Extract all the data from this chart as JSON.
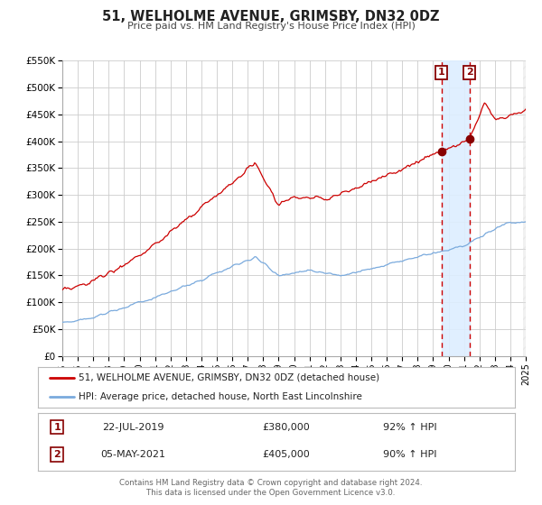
{
  "title": "51, WELHOLME AVENUE, GRIMSBY, DN32 0DZ",
  "subtitle": "Price paid vs. HM Land Registry's House Price Index (HPI)",
  "x_start": 1995,
  "x_end": 2025,
  "x_end_hatch": 2025.5,
  "y_min": 0,
  "y_max": 550000,
  "y_ticks": [
    0,
    50000,
    100000,
    150000,
    200000,
    250000,
    300000,
    350000,
    400000,
    450000,
    500000,
    550000
  ],
  "y_tick_labels": [
    "£0",
    "£50K",
    "£100K",
    "£150K",
    "£200K",
    "£250K",
    "£300K",
    "£350K",
    "£400K",
    "£450K",
    "£500K",
    "£550K"
  ],
  "x_ticks": [
    1995,
    1996,
    1997,
    1998,
    1999,
    2000,
    2001,
    2002,
    2003,
    2004,
    2005,
    2006,
    2007,
    2008,
    2009,
    2010,
    2011,
    2012,
    2013,
    2014,
    2015,
    2016,
    2017,
    2018,
    2019,
    2020,
    2021,
    2022,
    2023,
    2024,
    2025
  ],
  "red_color": "#cc0000",
  "blue_color": "#7aaadd",
  "background_color": "#ffffff",
  "plot_bg_color": "#ffffff",
  "grid_color": "#cccccc",
  "highlight_bg": "#ddeeff",
  "event1_x": 2019.55,
  "event1_y": 380000,
  "event1_label": "22-JUL-2019",
  "event1_price": "£380,000",
  "event1_pct": "92% ↑ HPI",
  "event2_x": 2021.35,
  "event2_y": 405000,
  "event2_label": "05-MAY-2021",
  "event2_price": "£405,000",
  "event2_pct": "90% ↑ HPI",
  "legend1": "51, WELHOLME AVENUE, GRIMSBY, DN32 0DZ (detached house)",
  "legend2": "HPI: Average price, detached house, North East Lincolnshire",
  "footer1": "Contains HM Land Registry data © Crown copyright and database right 2024.",
  "footer2": "This data is licensed under the Open Government Licence v3.0."
}
